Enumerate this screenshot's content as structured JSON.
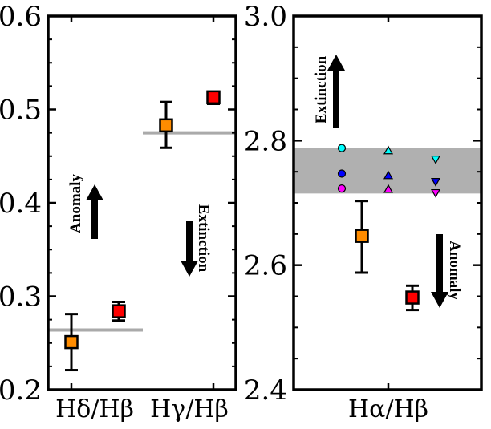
{
  "chart_data": [
    {
      "type": "scatter",
      "panel": "left",
      "ylim": [
        0.2,
        0.6
      ],
      "y_ticks": [
        "0.2",
        "0.3",
        "0.4",
        "0.5",
        "0.6"
      ],
      "categories": [
        "Hδ/Hβ",
        "Hγ/Hβ"
      ],
      "reference_lines": [
        {
          "category": "Hδ/Hβ",
          "value": 0.264,
          "color": "#aaaaaa"
        },
        {
          "category": "Hγ/Hβ",
          "value": 0.475,
          "color": "#aaaaaa"
        }
      ],
      "series": [
        {
          "name": "orange squares",
          "marker": "square",
          "color": "#ff8c00",
          "points": [
            {
              "category": "Hδ/Hβ",
              "y": 0.251,
              "err_low": 0.221,
              "err_high": 0.281
            },
            {
              "category": "Hγ/Hβ",
              "y": 0.483,
              "err_low": 0.459,
              "err_high": 0.508
            }
          ]
        },
        {
          "name": "red squares",
          "marker": "square",
          "color": "#ff0000",
          "points": [
            {
              "category": "Hδ/Hβ",
              "y": 0.284,
              "err_low": 0.274,
              "err_high": 0.294
            },
            {
              "category": "Hγ/Hβ",
              "y": 0.513,
              "err_low": 0.506,
              "err_high": 0.519
            }
          ]
        }
      ],
      "annotations": [
        {
          "text": "Anomaly",
          "arrow": "up"
        },
        {
          "text": "Extinction",
          "arrow": "down"
        }
      ]
    },
    {
      "type": "scatter",
      "panel": "right",
      "ylim": [
        2.4,
        3.0
      ],
      "y_ticks": [
        "2.4",
        "2.6",
        "2.8",
        "3.0"
      ],
      "categories": [
        "Hα/Hβ"
      ],
      "band": {
        "low": 2.715,
        "high": 2.788,
        "color": "#b0b0b0"
      },
      "series": [
        {
          "name": "orange square",
          "marker": "square",
          "color": "#ff8c00",
          "points": [
            {
              "category": "Hα/Hβ",
              "y": 2.647,
              "err_low": 2.588,
              "err_high": 2.703
            }
          ]
        },
        {
          "name": "red square",
          "marker": "square",
          "color": "#ff0000",
          "points": [
            {
              "category": "Hα/Hβ",
              "y": 2.548,
              "err_low": 2.528,
              "err_high": 2.567
            }
          ]
        }
      ],
      "model_markers": [
        {
          "group": 1,
          "shape": "circle",
          "color": "#00ffff",
          "y": 2.788
        },
        {
          "group": 1,
          "shape": "circle",
          "color": "#0000ff",
          "y": 2.747
        },
        {
          "group": 1,
          "shape": "circle",
          "color": "#ff00ff",
          "y": 2.723
        },
        {
          "group": 2,
          "shape": "triangle-up",
          "color": "#00ffff",
          "y": 2.784
        },
        {
          "group": 2,
          "shape": "triangle-up",
          "color": "#0000ff",
          "y": 2.744
        },
        {
          "group": 2,
          "shape": "triangle-up",
          "color": "#ff00ff",
          "y": 2.722
        },
        {
          "group": 3,
          "shape": "triangle-down",
          "color": "#00ffff",
          "y": 2.77
        },
        {
          "group": 3,
          "shape": "triangle-down",
          "color": "#0000ff",
          "y": 2.734
        },
        {
          "group": 3,
          "shape": "triangle-down",
          "color": "#ff00ff",
          "y": 2.716
        }
      ],
      "annotations": [
        {
          "text": "Extinction",
          "arrow": "up"
        },
        {
          "text": "Anomaly",
          "arrow": "down"
        }
      ]
    }
  ]
}
